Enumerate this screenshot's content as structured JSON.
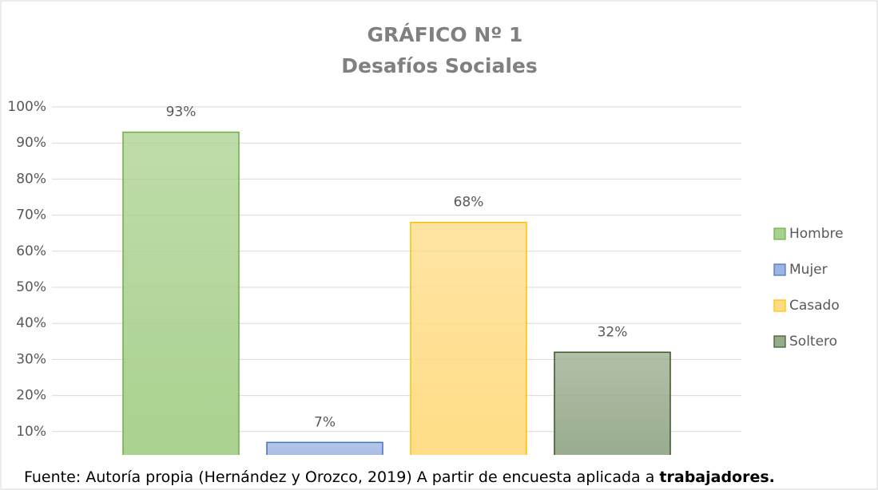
{
  "chart_data": {
    "type": "bar",
    "title": "GRÁFICO Nº 1",
    "subtitle": "Desafíos Sociales",
    "series": [
      {
        "name": "Hombre",
        "color": "#70ad47",
        "fill": "#a9d18e",
        "values": [
          93
        ],
        "value_labels": [
          "93%"
        ]
      },
      {
        "name": "Mujer",
        "color": "#4472c4",
        "fill": "#9db4e0",
        "values": [
          7
        ],
        "value_labels": [
          "7%"
        ]
      },
      {
        "name": "Casado",
        "color": "#ffc000",
        "fill": "#ffdc85",
        "values": [
          68
        ],
        "value_labels": [
          "68%"
        ]
      },
      {
        "name": "Soltero",
        "color": "#375623",
        "fill": "#97aa8c",
        "values": [
          32
        ],
        "value_labels": [
          "32%"
        ]
      }
    ],
    "ylim": [
      0,
      100
    ],
    "yticks": [
      {
        "value": 10,
        "label": "10%"
      },
      {
        "value": 20,
        "label": "20%"
      },
      {
        "value": 30,
        "label": "30%"
      },
      {
        "value": 40,
        "label": "40%"
      },
      {
        "value": 50,
        "label": "50%"
      },
      {
        "value": 60,
        "label": "60%"
      },
      {
        "value": 70,
        "label": "70%"
      },
      {
        "value": 80,
        "label": "80%"
      },
      {
        "value": 90,
        "label": "90%"
      },
      {
        "value": 100,
        "label": "100%"
      }
    ],
    "grid": true,
    "legend": "right",
    "source": "Fuente: Autoría propia (Hernández y Orozco, 2019) A partir de encuesta aplicada a ",
    "source_bold": "trabajadores."
  }
}
